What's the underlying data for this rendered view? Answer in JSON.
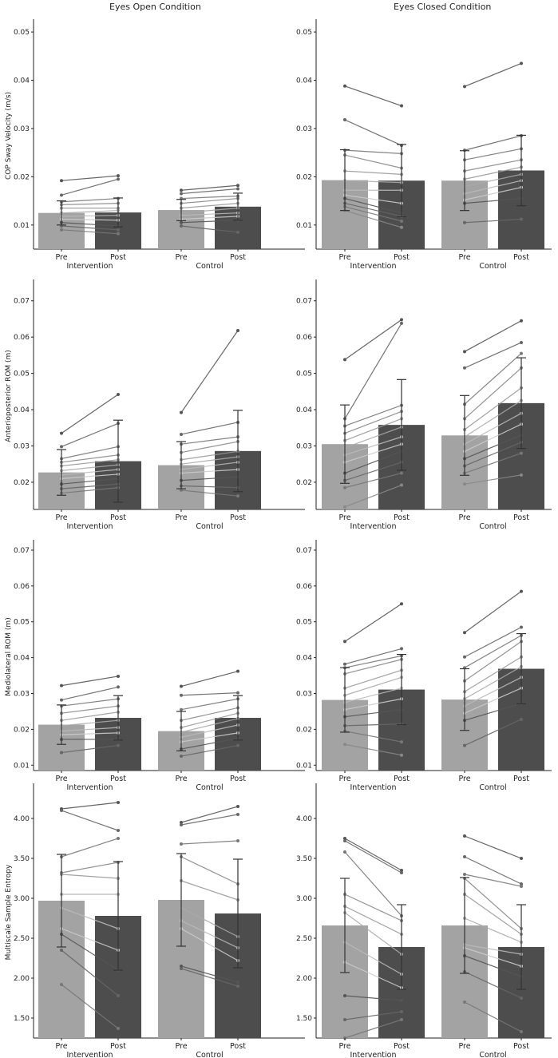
{
  "column_titles": {
    "left": "Eyes Open Condition",
    "right": "Eyes Closed Condition"
  },
  "colors": {
    "pre_bar": "#a3a3a3",
    "post_bar": "#4d4d4d",
    "axis": "#222222",
    "line": "#5a5a5a"
  },
  "chart_data": [
    {
      "type": "bar",
      "title": "COP Sway Velocity",
      "ylabel": "COP Sway Velocity (m/s)",
      "ylim": [
        0.005,
        0.052
      ],
      "yticks": [
        0.01,
        0.02,
        0.03,
        0.04,
        0.05
      ],
      "ytick_labels": [
        "0.01",
        "0.02",
        "0.03",
        "0.04",
        "0.05"
      ],
      "panels": [
        {
          "condition": "Eyes Open",
          "groups": [
            {
              "name": "Intervention",
              "categories": [
                "Pre",
                "Post"
              ],
              "values": [
                0.0125,
                0.0126
              ],
              "errors": [
                0.0025,
                0.003
              ],
              "pre_points": [
                0.0192,
                0.0162,
                0.0148,
                0.0142,
                0.0135,
                0.0125,
                0.0118,
                0.0112,
                0.0105,
                0.0098,
                0.009
              ],
              "post_points": [
                0.0202,
                0.0195,
                0.0155,
                0.0145,
                0.0135,
                0.013,
                0.012,
                0.011,
                0.0098,
                0.009,
                0.0082
              ]
            },
            {
              "name": "Control",
              "categories": [
                "Pre",
                "Post"
              ],
              "values": [
                0.0131,
                0.0138
              ],
              "errors": [
                0.0022,
                0.0028
              ],
              "pre_points": [
                0.0172,
                0.0165,
                0.0155,
                0.0145,
                0.0135,
                0.0125,
                0.012,
                0.0112,
                0.0105,
                0.0098
              ],
              "post_points": [
                0.0182,
                0.0175,
                0.016,
                0.0155,
                0.0145,
                0.0135,
                0.0125,
                0.0118,
                0.011,
                0.0085
              ]
            }
          ]
        },
        {
          "condition": "Eyes Closed",
          "groups": [
            {
              "name": "Intervention",
              "categories": [
                "Pre",
                "Post"
              ],
              "values": [
                0.0193,
                0.0192
              ],
              "errors": [
                0.0063,
                0.0075
              ],
              "pre_points": [
                0.0388,
                0.0318,
                0.0255,
                0.0245,
                0.0212,
                0.0192,
                0.0172,
                0.0162,
                0.0155,
                0.0145,
                0.0138,
                0.013
              ],
              "post_points": [
                0.0347,
                0.0265,
                0.0248,
                0.0218,
                0.0205,
                0.0188,
                0.0172,
                0.0145,
                0.0125,
                0.0118,
                0.0108,
                0.0095
              ]
            },
            {
              "name": "Control",
              "categories": [
                "Pre",
                "Post"
              ],
              "values": [
                0.0192,
                0.0213
              ],
              "errors": [
                0.0062,
                0.0073
              ],
              "pre_points": [
                0.0387,
                0.0255,
                0.0235,
                0.0212,
                0.0195,
                0.018,
                0.0165,
                0.0152,
                0.0145,
                0.0105
              ],
              "post_points": [
                0.0435,
                0.0285,
                0.0258,
                0.0235,
                0.022,
                0.0205,
                0.0192,
                0.0178,
                0.0155,
                0.0112
              ]
            }
          ]
        }
      ]
    },
    {
      "type": "bar",
      "title": "Anteroposterior ROM",
      "ylabel": "Anterioposterior ROM (m)",
      "ylim": [
        0.0125,
        0.075
      ],
      "yticks": [
        0.02,
        0.03,
        0.04,
        0.05,
        0.06,
        0.07
      ],
      "ytick_labels": [
        "0.02",
        "0.03",
        "0.04",
        "0.05",
        "0.06",
        "0.07"
      ],
      "panels": [
        {
          "condition": "Eyes Open",
          "groups": [
            {
              "name": "Intervention",
              "categories": [
                "Pre",
                "Post"
              ],
              "values": [
                0.0227,
                0.0258
              ],
              "errors": [
                0.0063,
                0.0113
              ],
              "pre_points": [
                0.0335,
                0.0298,
                0.0265,
                0.0255,
                0.0245,
                0.0232,
                0.022,
                0.021,
                0.0195,
                0.0182,
                0.017
              ],
              "post_points": [
                0.0442,
                0.0362,
                0.0298,
                0.0275,
                0.0262,
                0.0248,
                0.0235,
                0.0222,
                0.021,
                0.0195,
                0.0185
              ]
            },
            {
              "name": "Control",
              "categories": [
                "Pre",
                "Post"
              ],
              "values": [
                0.0247,
                0.0286
              ],
              "errors": [
                0.0065,
                0.0112
              ],
              "pre_points": [
                0.0392,
                0.0332,
                0.0305,
                0.0282,
                0.0262,
                0.025,
                0.0235,
                0.0225,
                0.0205,
                0.019,
                0.0178
              ],
              "post_points": [
                0.0618,
                0.0365,
                0.0325,
                0.0312,
                0.0285,
                0.027,
                0.0255,
                0.0235,
                0.0215,
                0.0185,
                0.0162
              ]
            }
          ]
        },
        {
          "condition": "Eyes Closed",
          "groups": [
            {
              "name": "Intervention",
              "categories": [
                "Pre",
                "Post"
              ],
              "values": [
                0.0305,
                0.0358
              ],
              "errors": [
                0.0108,
                0.0125
              ],
              "pre_points": [
                0.0538,
                0.0375,
                0.0355,
                0.0335,
                0.0315,
                0.0295,
                0.0275,
                0.0255,
                0.0225,
                0.0205,
                0.0185,
                0.0132
              ],
              "post_points": [
                0.0648,
                0.0638,
                0.0412,
                0.0395,
                0.0375,
                0.0352,
                0.0325,
                0.0305,
                0.0285,
                0.0255,
                0.0225,
                0.0192
              ]
            },
            {
              "name": "Control",
              "categories": [
                "Pre",
                "Post"
              ],
              "values": [
                0.0329,
                0.0418
              ],
              "errors": [
                0.011,
                0.0125
              ],
              "pre_points": [
                0.056,
                0.0515,
                0.0415,
                0.0375,
                0.0345,
                0.0325,
                0.0305,
                0.0285,
                0.0265,
                0.0245,
                0.0225,
                0.0195
              ],
              "post_points": [
                0.0645,
                0.0585,
                0.0555,
                0.0515,
                0.046,
                0.0425,
                0.039,
                0.036,
                0.033,
                0.031,
                0.028,
                0.022
              ]
            }
          ]
        }
      ]
    },
    {
      "type": "bar",
      "title": "Mediolateral ROM",
      "ylabel": "Mediolateral ROM (m)",
      "ylim": [
        0.0085,
        0.072
      ],
      "yticks": [
        0.01,
        0.02,
        0.03,
        0.04,
        0.05,
        0.06,
        0.07
      ],
      "ytick_labels": [
        "0.01",
        "0.02",
        "0.03",
        "0.04",
        "0.05",
        "0.06",
        "0.07"
      ],
      "panels": [
        {
          "condition": "Eyes Open",
          "groups": [
            {
              "name": "Intervention",
              "categories": [
                "Pre",
                "Post"
              ],
              "values": [
                0.0213,
                0.0232
              ],
              "errors": [
                0.0055,
                0.0062
              ],
              "pre_points": [
                0.0322,
                0.0282,
                0.0265,
                0.0245,
                0.0225,
                0.021,
                0.0195,
                0.0185,
                0.0172,
                0.0135
              ],
              "post_points": [
                0.0348,
                0.0318,
                0.0285,
                0.0265,
                0.0248,
                0.0225,
                0.0205,
                0.019,
                0.0172,
                0.0155
              ]
            },
            {
              "name": "Control",
              "categories": [
                "Pre",
                "Post"
              ],
              "values": [
                0.0195,
                0.0232
              ],
              "errors": [
                0.0055,
                0.0062
              ],
              "pre_points": [
                0.032,
                0.0295,
                0.0255,
                0.0225,
                0.0205,
                0.0192,
                0.0178,
                0.0165,
                0.0145,
                0.0125
              ],
              "post_points": [
                0.0362,
                0.0302,
                0.0285,
                0.026,
                0.0245,
                0.023,
                0.0212,
                0.019,
                0.0175,
                0.0155
              ]
            }
          ]
        },
        {
          "condition": "Eyes Closed",
          "groups": [
            {
              "name": "Intervention",
              "categories": [
                "Pre",
                "Post"
              ],
              "values": [
                0.0282,
                0.0311
              ],
              "errors": [
                0.009,
                0.0098
              ],
              "pre_points": [
                0.0445,
                0.0382,
                0.0372,
                0.0355,
                0.0315,
                0.0295,
                0.0275,
                0.0255,
                0.0235,
                0.021,
                0.0195,
                0.0158
              ],
              "post_points": [
                0.055,
                0.0425,
                0.0405,
                0.0395,
                0.0365,
                0.0345,
                0.0315,
                0.0285,
                0.0255,
                0.0215,
                0.0165,
                0.0128
              ]
            },
            {
              "name": "Control",
              "categories": [
                "Pre",
                "Post"
              ],
              "values": [
                0.0283,
                0.0369
              ],
              "errors": [
                0.0086,
                0.0098
              ],
              "pre_points": [
                0.047,
                0.0402,
                0.0372,
                0.0335,
                0.0305,
                0.0285,
                0.0265,
                0.0245,
                0.0225,
                0.0155
              ],
              "post_points": [
                0.0585,
                0.0485,
                0.0462,
                0.0445,
                0.0402,
                0.0375,
                0.0345,
                0.0315,
                0.0272,
                0.0228
              ]
            }
          ]
        }
      ]
    },
    {
      "type": "bar",
      "title": "Multiscale Sample Entropy",
      "ylabel": "Multiscale Sample Entropy",
      "ylim": [
        1.25,
        4.4
      ],
      "yticks": [
        1.5,
        2.0,
        2.5,
        3.0,
        3.5,
        4.0
      ],
      "ytick_labels": [
        "1.50",
        "2.00",
        "2.50",
        "3.00",
        "3.50",
        "4.00"
      ],
      "panels": [
        {
          "condition": "Eyes Open",
          "groups": [
            {
              "name": "Intervention",
              "categories": [
                "Pre",
                "Post"
              ],
              "values": [
                2.97,
                2.78
              ],
              "errors": [
                0.58,
                0.68
              ],
              "pre_points": [
                4.12,
                4.1,
                3.52,
                3.32,
                3.3,
                3.05,
                2.88,
                2.62,
                2.55,
                2.35,
                1.92
              ],
              "post_points": [
                4.2,
                3.85,
                3.75,
                3.45,
                3.25,
                3.05,
                2.62,
                2.35,
                2.1,
                1.78,
                1.37
              ]
            },
            {
              "name": "Control",
              "categories": [
                "Pre",
                "Post"
              ],
              "values": [
                2.98,
                2.81
              ],
              "errors": [
                0.58,
                0.68
              ],
              "pre_points": [
                3.95,
                3.92,
                3.68,
                3.52,
                3.22,
                2.88,
                2.72,
                2.62,
                2.15,
                2.12
              ],
              "post_points": [
                4.15,
                4.05,
                3.72,
                3.18,
                2.98,
                2.52,
                2.38,
                2.22,
                1.95,
                1.9
              ]
            }
          ]
        },
        {
          "condition": "Eyes Closed",
          "groups": [
            {
              "name": "Intervention",
              "categories": [
                "Pre",
                "Post"
              ],
              "values": [
                2.66,
                2.39
              ],
              "errors": [
                0.59,
                0.53
              ],
              "pre_points": [
                3.75,
                3.72,
                3.58,
                3.05,
                2.9,
                2.82,
                2.45,
                2.2,
                1.78,
                1.48,
                1.25
              ],
              "post_points": [
                3.35,
                3.32,
                2.78,
                2.72,
                2.55,
                2.3,
                2.05,
                1.88,
                1.72,
                1.58,
                1.48
              ]
            },
            {
              "name": "Control",
              "categories": [
                "Pre",
                "Post"
              ],
              "values": [
                2.66,
                2.39
              ],
              "errors": [
                0.6,
                0.53
              ],
              "pre_points": [
                3.78,
                3.52,
                3.3,
                3.25,
                3.05,
                2.75,
                2.42,
                2.38,
                2.28,
                2.08,
                1.7
              ],
              "post_points": [
                3.5,
                3.18,
                3.15,
                2.62,
                2.55,
                2.45,
                2.3,
                2.15,
                2.02,
                1.75,
                1.33
              ]
            }
          ]
        }
      ]
    }
  ]
}
